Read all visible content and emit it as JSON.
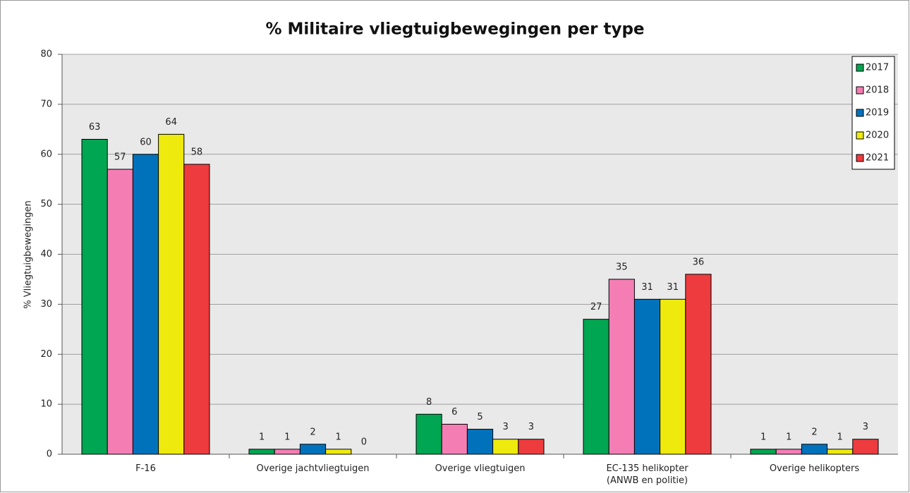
{
  "chart_data": {
    "type": "bar",
    "title": "% Militaire vliegtuigbewegingen per type",
    "ylabel": "% Vliegtuigbewegingen",
    "categories": [
      "F-16",
      "Overige jachtvliegtuigen",
      "Overige vliegtuigen",
      "EC-135 helikopter\n(ANWB en politie)",
      "Overige helikopters"
    ],
    "series": [
      {
        "name": "2017",
        "color": "#00a651",
        "values": [
          63,
          1,
          8,
          27,
          1
        ]
      },
      {
        "name": "2018",
        "color": "#f47eb4",
        "values": [
          57,
          1,
          6,
          35,
          1
        ]
      },
      {
        "name": "2019",
        "color": "#0072bc",
        "values": [
          60,
          2,
          5,
          31,
          2
        ]
      },
      {
        "name": "2020",
        "color": "#eeea0e",
        "values": [
          64,
          1,
          3,
          31,
          1
        ]
      },
      {
        "name": "2021",
        "color": "#ee3b3e",
        "values": [
          58,
          0,
          3,
          36,
          3
        ]
      }
    ],
    "ylim": [
      0,
      80
    ],
    "yticks": [
      0,
      10,
      20,
      30,
      40,
      50,
      60,
      70,
      80
    ],
    "grid": true,
    "legend": "upper right"
  }
}
